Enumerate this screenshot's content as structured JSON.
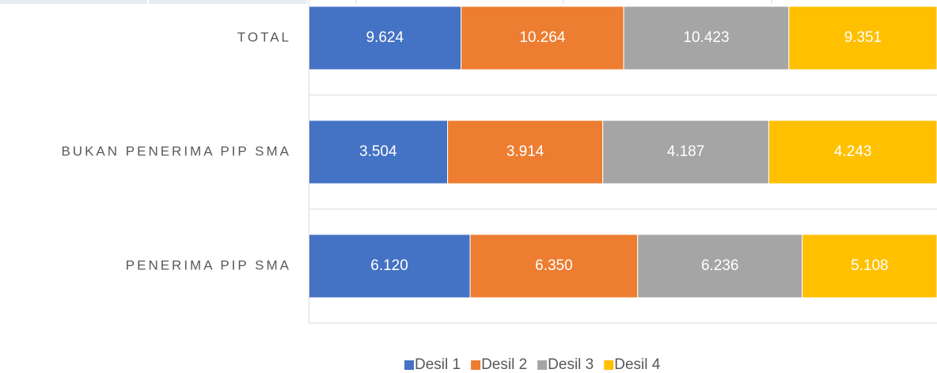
{
  "chart_data": {
    "type": "bar",
    "orientation": "horizontal",
    "stacking": "percent",
    "legend": "bottom",
    "categories": [
      "TOTAL",
      "BUKAN PENERIMA PIP SMA",
      "PENERIMA PIP SMA"
    ],
    "series": [
      {
        "name": "Desil 1",
        "color": "#4472c4",
        "values": [
          9624,
          3504,
          6120
        ],
        "value_labels": [
          "9.624",
          "3.504",
          "6.120"
        ]
      },
      {
        "name": "Desil 2",
        "color": "#ed7d31",
        "values": [
          10264,
          3914,
          6350
        ],
        "value_labels": [
          "10.264",
          "3.914",
          "6.350"
        ]
      },
      {
        "name": "Desil 3",
        "color": "#a5a5a5",
        "values": [
          10423,
          4187,
          6236
        ],
        "value_labels": [
          "10.423",
          "4.187",
          "6.236"
        ]
      },
      {
        "name": "Desil 4",
        "color": "#ffc000",
        "values": [
          9351,
          4243,
          5108
        ],
        "value_labels": [
          "9.351",
          "4.243",
          "5.108"
        ]
      }
    ]
  }
}
